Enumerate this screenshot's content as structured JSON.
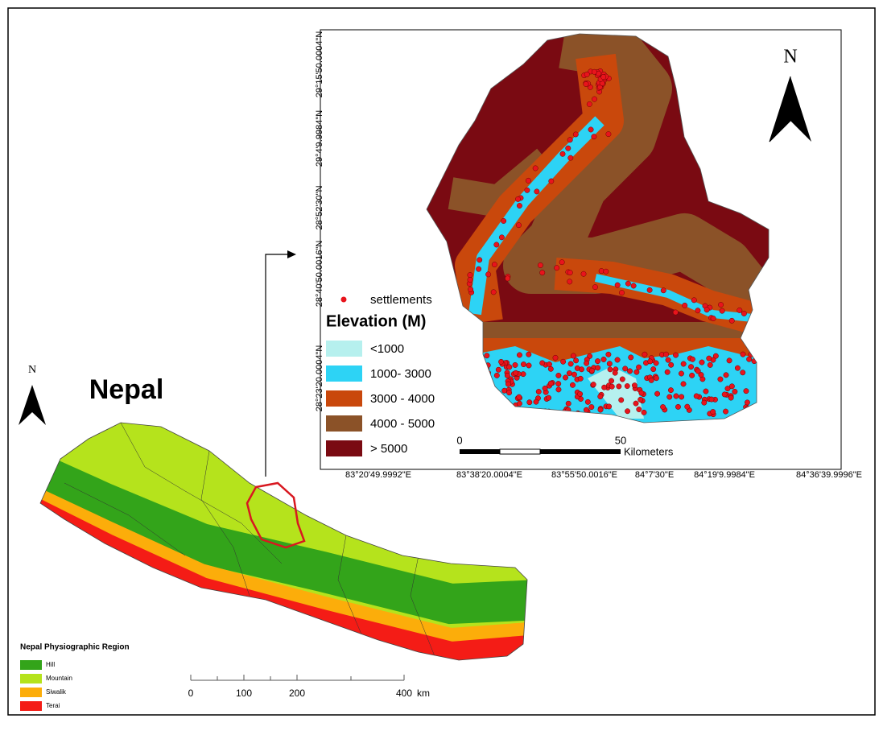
{
  "inset_map": {
    "title": "Nepal",
    "north": "N",
    "legend": {
      "title": "Nepal Physiographic Region",
      "items": [
        "Hill",
        "Mountain",
        "Siwalik",
        "Terai"
      ]
    },
    "scale": {
      "labels": [
        "0",
        "100",
        "200",
        "400"
      ],
      "unit": "km"
    }
  },
  "main_map": {
    "north": "N",
    "legend": {
      "settlements": "settlements",
      "title": "Elevation (M)",
      "classes": [
        "<1000",
        "1000- 3000",
        "3000 - 4000",
        "4000 - 5000",
        "> 5000"
      ]
    },
    "scale": {
      "labels": [
        "0",
        "50"
      ],
      "unit": "Kilometers"
    },
    "latitude_labels": [
      "29°15'50.0004\"N",
      "29°4'9.9984\"N",
      "28°52'30\"N",
      "28°40'50.0016\"N",
      "28°23'20.0004\"N"
    ],
    "longitude_labels": [
      "83°20'49.9992\"E",
      "83°38'20.0004\"E",
      "83°55'50.0016\"E",
      "84°7'30\"E",
      "84°19'9.9984\"E",
      "84°36'39.9996\"E"
    ]
  }
}
